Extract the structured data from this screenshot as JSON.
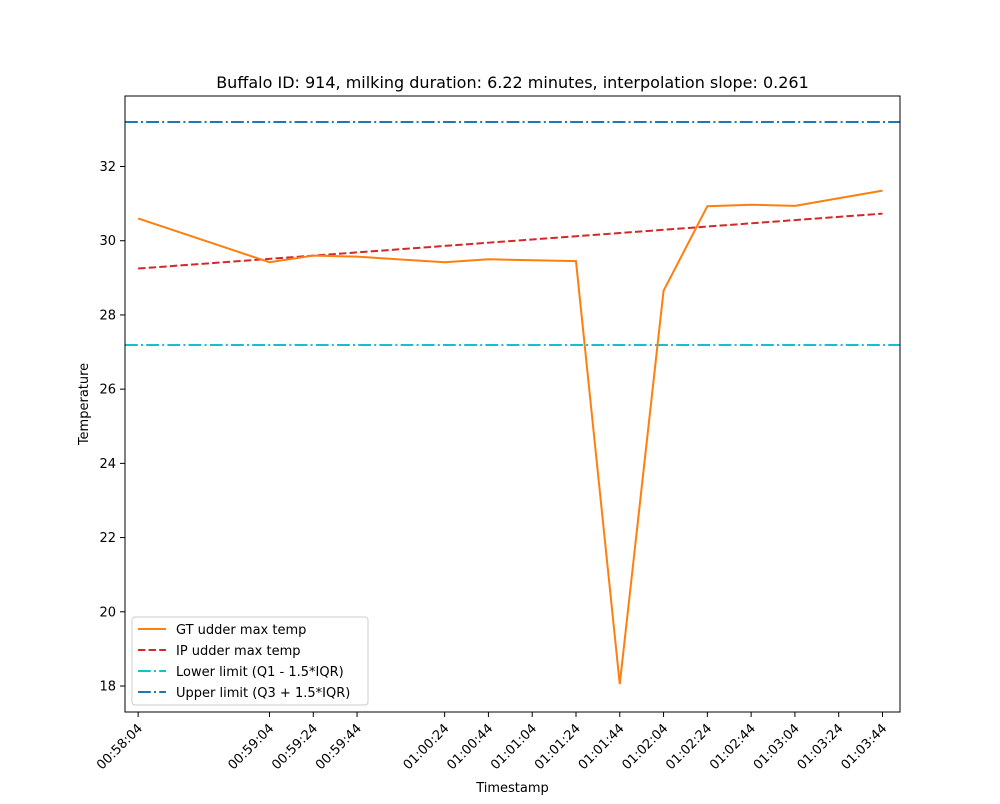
{
  "chart_data": {
    "type": "line",
    "title": "Buffalo ID: 914, milking duration: 6.22 minutes, interpolation slope: 0.261",
    "xlabel": "Timestamp",
    "ylabel": "Temperature",
    "xlim": [
      "00:57:58",
      "01:03:52"
    ],
    "ylim": [
      17.3,
      33.9
    ],
    "x_ticks": [
      "00:58:04",
      "00:59:04",
      "00:59:24",
      "00:59:44",
      "01:00:24",
      "01:00:44",
      "01:01:04",
      "01:01:24",
      "01:01:44",
      "01:02:04",
      "01:02:24",
      "01:02:44",
      "01:03:04",
      "01:03:24",
      "01:03:44"
    ],
    "y_ticks": [
      18,
      20,
      22,
      24,
      26,
      28,
      30,
      32
    ],
    "grid": false,
    "legend_position": "lower-left",
    "series": [
      {
        "name": "GT udder max temp",
        "style": "solid",
        "color": "#ff7f0e",
        "points": [
          {
            "x": "00:58:04",
            "y": 30.6
          },
          {
            "x": "00:59:04",
            "y": 29.42
          },
          {
            "x": "00:59:24",
            "y": 29.6
          },
          {
            "x": "00:59:44",
            "y": 29.57
          },
          {
            "x": "01:00:24",
            "y": 29.42
          },
          {
            "x": "01:00:44",
            "y": 29.5
          },
          {
            "x": "01:01:24",
            "y": 29.45
          },
          {
            "x": "01:01:44",
            "y": 18.05
          },
          {
            "x": "01:02:04",
            "y": 28.65
          },
          {
            "x": "01:02:24",
            "y": 30.93
          },
          {
            "x": "01:02:44",
            "y": 30.97
          },
          {
            "x": "01:03:04",
            "y": 30.94
          },
          {
            "x": "01:03:44",
            "y": 31.35
          }
        ]
      },
      {
        "name": "IP udder max temp",
        "style": "dashed",
        "color": "#d62728",
        "points": [
          {
            "x": "00:58:04",
            "y": 29.25
          },
          {
            "x": "01:03:44",
            "y": 30.73
          }
        ]
      },
      {
        "name": "Lower limit (Q1 - 1.5*IQR)",
        "style": "dashdot",
        "color": "#17becf",
        "y_constant": 27.19
      },
      {
        "name": "Upper limit (Q3 + 1.5*IQR)",
        "style": "dashdot",
        "color": "#1f77b4",
        "y_constant": 33.2
      }
    ]
  }
}
